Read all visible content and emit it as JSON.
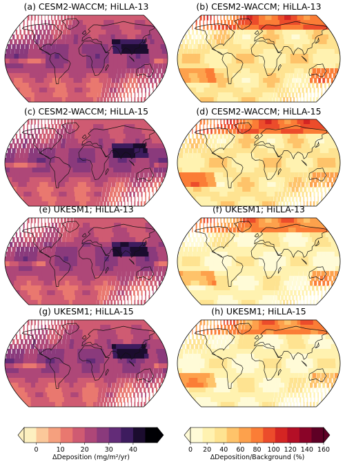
{
  "panels": [
    {
      "title": "(a) CESM2-WACCM; HiLLA-13",
      "scale": "abs"
    },
    {
      "title": "(b) CESM2-WACCM; HiLLA-13",
      "scale": "pct"
    },
    {
      "title": "(c) CESM2-WACCM; HiLLA-15",
      "scale": "abs"
    },
    {
      "title": "(d) CESM2-WACCM; HiLLA-15",
      "scale": "pct"
    },
    {
      "title": "(e) UKESM1; HiLLA-13",
      "scale": "abs"
    },
    {
      "title": "(f) UKESM1; HiLLA-13",
      "scale": "pct"
    },
    {
      "title": "(g) UKESM1; HiLLA-15",
      "scale": "abs"
    },
    {
      "title": "(h) UKESM1; HiLLA-15",
      "scale": "pct"
    }
  ],
  "colorbar_abs": {
    "label": "ΔDeposition (mg/m²/yr)",
    "ticks": [
      "0",
      "10",
      "20",
      "30",
      "40"
    ],
    "colors": [
      "#fdf0c0",
      "#fbc89a",
      "#f5a07e",
      "#e9786f",
      "#cf5b72",
      "#ae4778",
      "#8a3a7c",
      "#632c78",
      "#3d1c5e",
      "#1b0c2e",
      "#000004"
    ]
  },
  "colorbar_pct": {
    "label": "ΔDeposition/Background (%)",
    "ticks": [
      "0",
      "20",
      "40",
      "60",
      "80",
      "100",
      "120",
      "140",
      "160"
    ],
    "colors": [
      "#fffbd7",
      "#fff2b0",
      "#fee391",
      "#fec36a",
      "#fda14c",
      "#fb7d36",
      "#ec4c2b",
      "#d42523",
      "#b40f26",
      "#8a0428",
      "#5f0025"
    ]
  }
}
